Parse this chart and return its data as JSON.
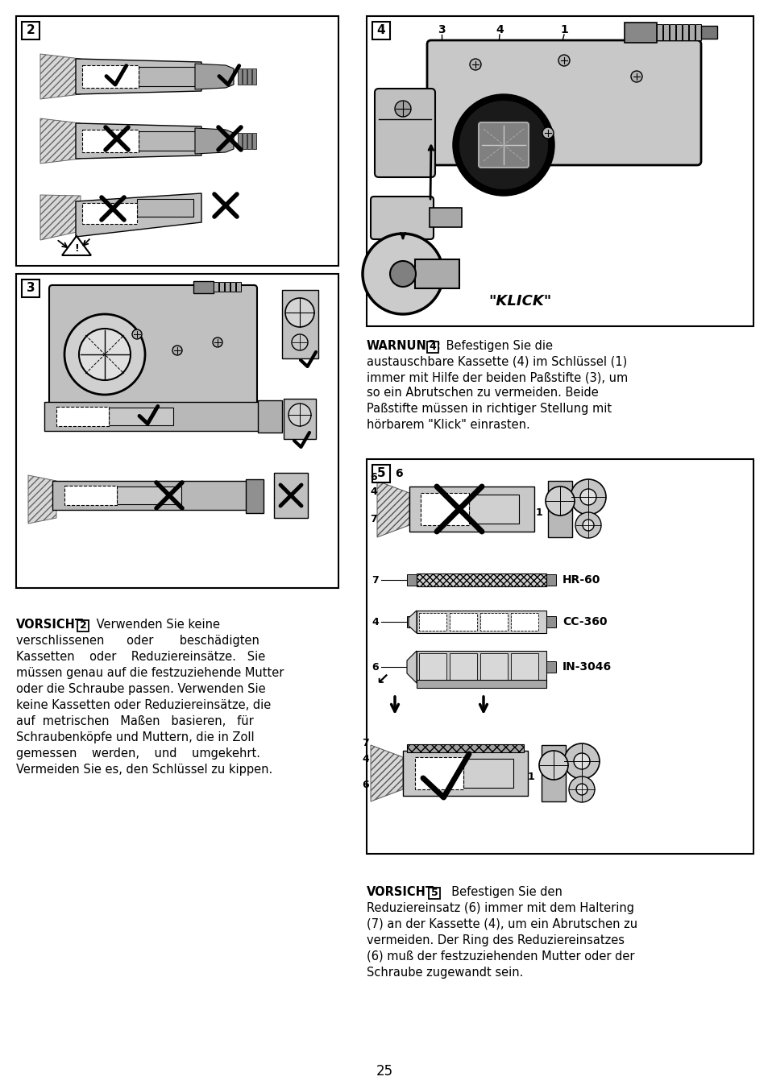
{
  "page_number": "25",
  "bg": "#ffffff",
  "warnung_bold": "WARNUNG:",
  "warnung_num": "4",
  "warnung_rest_line1": " Befestigen Sie die",
  "warnung_line2": "austauschbare Kassette (4) im Schlüssel (1)",
  "warnung_line3": "immer mit Hilfe der beiden Paßstifte (3), um",
  "warnung_line4": "so ein Abrutschen zu vermeiden. Beide",
  "warnung_line5": "Paßstifte müssen in richtiger Stellung mit",
  "warnung_line6": "hörbarem \"Klick\" einrasten.",
  "vorsicht2_bold": "VORSICHT:",
  "vorsicht2_num": "2",
  "vorsicht2_line1": " Verwenden Sie keine",
  "vorsicht2_line2": "verschlissenen      oder       beschädigten",
  "vorsicht2_line3": "Kassetten    oder    Reduziereinsätze.   Sie",
  "vorsicht2_line4": "müssen genau auf die festzuziehende Mutter",
  "vorsicht2_line5": "oder die Schraube passen. Verwenden Sie",
  "vorsicht2_line6": "keine Kassetten oder Reduziereinsätze, die",
  "vorsicht2_line7": "auf  metrischen   Maßen   basieren,   für",
  "vorsicht2_line8": "Schraubenköpfe und Muttern, die in Zoll",
  "vorsicht2_line9": "gemessen    werden,    und    umgekehrt.",
  "vorsicht2_line10": "Vermeiden Sie es, den Schlüssel zu kippen.",
  "vorsicht5_bold": "VORSICHT:",
  "vorsicht5_num": "5",
  "vorsicht5_line1": "  Befestigen Sie den",
  "vorsicht5_line2": "Reduziereinsatz (6) immer mit dem Haltering",
  "vorsicht5_line3": "(7) an der Kassette (4), um ein Abrutschen zu",
  "vorsicht5_line4": "vermeiden. Der Ring des Reduziereinsatzes",
  "vorsicht5_line5": "(6) muß der festzuziehenden Mutter oder der",
  "vorsicht5_line6": "Schraube zugewandt sein.",
  "klick": "\"KLICK\"",
  "hr60": "HR-60",
  "cc360": "CC-360",
  "in3046": "IN-3046"
}
